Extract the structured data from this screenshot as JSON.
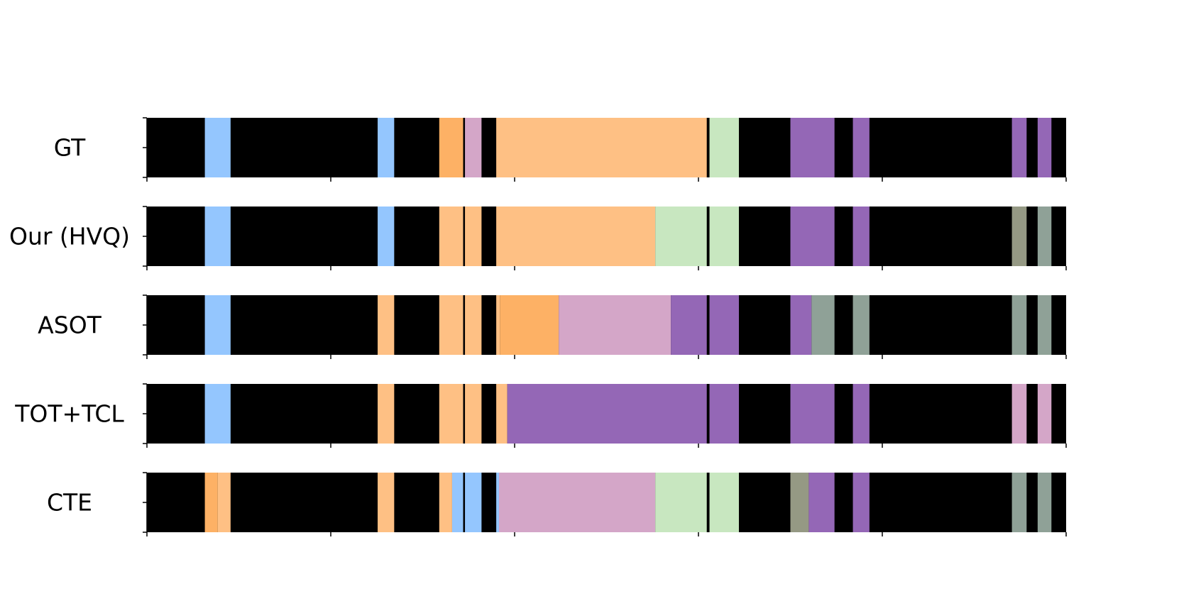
{
  "chart_data": {
    "type": "segmentation-timeline",
    "x_range": [
      0,
      1000
    ],
    "colors": {
      "background": "#000000",
      "blue": "#94c6fe",
      "light_orange": "#fec084",
      "orange": "#fdb165",
      "pink": "#d4a6c8",
      "green": "#c8e7c0",
      "purple": "#9467b6",
      "gray_green": "#8fa197",
      "gray_olive": "#959984",
      "boundary": "#000000"
    },
    "x_ticks": [
      0,
      200,
      400,
      600,
      800,
      1000
    ],
    "boundary_x": 610,
    "rows": [
      {
        "label": "GT",
        "segments": [
          {
            "start": 63,
            "end": 91,
            "color": "#94c6fe"
          },
          {
            "start": 251,
            "end": 269,
            "color": "#94c6fe"
          },
          {
            "start": 318,
            "end": 344,
            "color": "#fdb165"
          },
          {
            "start": 346,
            "end": 364,
            "color": "#d4a6c8"
          },
          {
            "start": 380,
            "end": 610,
            "color": "#fec084"
          },
          {
            "start": 612,
            "end": 644,
            "color": "#c8e7c0"
          },
          {
            "start": 700,
            "end": 748,
            "color": "#9467b6"
          },
          {
            "start": 768,
            "end": 786,
            "color": "#9467b6"
          },
          {
            "start": 941,
            "end": 957,
            "color": "#9467b6"
          },
          {
            "start": 969,
            "end": 984,
            "color": "#9467b6"
          }
        ]
      },
      {
        "label": "Our (HVQ)",
        "segments": [
          {
            "start": 63,
            "end": 91,
            "color": "#94c6fe"
          },
          {
            "start": 251,
            "end": 269,
            "color": "#94c6fe"
          },
          {
            "start": 318,
            "end": 344,
            "color": "#fec084"
          },
          {
            "start": 346,
            "end": 364,
            "color": "#fec084"
          },
          {
            "start": 380,
            "end": 553,
            "color": "#fec084"
          },
          {
            "start": 553,
            "end": 610,
            "color": "#c8e7c0"
          },
          {
            "start": 612,
            "end": 644,
            "color": "#c8e7c0"
          },
          {
            "start": 700,
            "end": 748,
            "color": "#9467b6"
          },
          {
            "start": 768,
            "end": 786,
            "color": "#9467b6"
          },
          {
            "start": 941,
            "end": 957,
            "color": "#959984"
          },
          {
            "start": 969,
            "end": 984,
            "color": "#8fa197"
          }
        ]
      },
      {
        "label": "ASOT",
        "segments": [
          {
            "start": 63,
            "end": 91,
            "color": "#94c6fe"
          },
          {
            "start": 251,
            "end": 269,
            "color": "#fec084"
          },
          {
            "start": 318,
            "end": 344,
            "color": "#fec084"
          },
          {
            "start": 346,
            "end": 364,
            "color": "#fec084"
          },
          {
            "start": 380,
            "end": 384,
            "color": "#fec084"
          },
          {
            "start": 384,
            "end": 448,
            "color": "#fdb165"
          },
          {
            "start": 448,
            "end": 570,
            "color": "#d4a6c8"
          },
          {
            "start": 570,
            "end": 610,
            "color": "#9467b6"
          },
          {
            "start": 612,
            "end": 644,
            "color": "#9467b6"
          },
          {
            "start": 700,
            "end": 723,
            "color": "#9467b6"
          },
          {
            "start": 723,
            "end": 748,
            "color": "#8fa197"
          },
          {
            "start": 768,
            "end": 786,
            "color": "#8fa197"
          },
          {
            "start": 941,
            "end": 957,
            "color": "#8fa197"
          },
          {
            "start": 969,
            "end": 984,
            "color": "#8fa197"
          }
        ]
      },
      {
        "label": "TOT+TCL",
        "segments": [
          {
            "start": 63,
            "end": 91,
            "color": "#94c6fe"
          },
          {
            "start": 251,
            "end": 269,
            "color": "#fec084"
          },
          {
            "start": 318,
            "end": 344,
            "color": "#fec084"
          },
          {
            "start": 346,
            "end": 364,
            "color": "#fec084"
          },
          {
            "start": 380,
            "end": 392,
            "color": "#fec084"
          },
          {
            "start": 392,
            "end": 610,
            "color": "#9467b6"
          },
          {
            "start": 612,
            "end": 644,
            "color": "#9467b6"
          },
          {
            "start": 700,
            "end": 748,
            "color": "#9467b6"
          },
          {
            "start": 768,
            "end": 786,
            "color": "#9467b6"
          },
          {
            "start": 941,
            "end": 957,
            "color": "#d4a6c8"
          },
          {
            "start": 969,
            "end": 984,
            "color": "#d4a6c8"
          }
        ]
      },
      {
        "label": "CTE",
        "segments": [
          {
            "start": 63,
            "end": 77,
            "color": "#fdb165"
          },
          {
            "start": 77,
            "end": 91,
            "color": "#fec084"
          },
          {
            "start": 251,
            "end": 269,
            "color": "#fec084"
          },
          {
            "start": 318,
            "end": 332,
            "color": "#fec084"
          },
          {
            "start": 332,
            "end": 344,
            "color": "#94c6fe"
          },
          {
            "start": 346,
            "end": 364,
            "color": "#94c6fe"
          },
          {
            "start": 380,
            "end": 383,
            "color": "#94c6fe"
          },
          {
            "start": 383,
            "end": 553,
            "color": "#d4a6c8"
          },
          {
            "start": 553,
            "end": 610,
            "color": "#c8e7c0"
          },
          {
            "start": 612,
            "end": 644,
            "color": "#c8e7c0"
          },
          {
            "start": 700,
            "end": 720,
            "color": "#959984"
          },
          {
            "start": 720,
            "end": 748,
            "color": "#9467b6"
          },
          {
            "start": 768,
            "end": 786,
            "color": "#9467b6"
          },
          {
            "start": 941,
            "end": 957,
            "color": "#8fa197"
          },
          {
            "start": 969,
            "end": 984,
            "color": "#8fa197"
          }
        ]
      }
    ]
  }
}
